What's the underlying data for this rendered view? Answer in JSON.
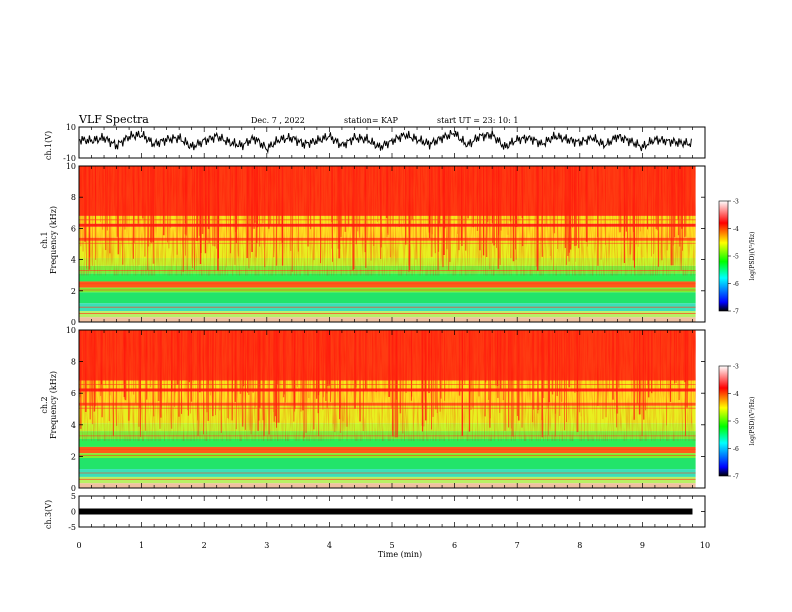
{
  "header": {
    "title": "VLF Spectra",
    "date": "Dec. 7 , 2022",
    "station": "station= KAP",
    "start": "start UT =  23: 10: 1"
  },
  "chart_data": [
    {
      "type": "line",
      "panel": "ch1_waveform",
      "ylabel": "ch.1(V)",
      "ylim": [
        -10,
        10
      ],
      "yticks": [
        "10",
        "-10"
      ],
      "xlim": [
        0,
        10
      ],
      "series": [
        {
          "x": [
            0.0,
            0.2,
            0.4,
            0.6,
            0.8,
            1.0,
            1.2,
            1.4,
            1.6,
            1.8,
            2.0,
            2.2,
            2.4,
            2.6,
            2.8,
            3.0,
            3.2,
            3.4,
            3.6,
            3.8,
            4.0,
            4.2,
            4.4,
            4.6,
            4.8,
            5.0,
            5.2,
            5.4,
            5.6,
            5.8,
            6.0,
            6.2,
            6.4,
            6.6,
            6.8,
            7.0,
            7.2,
            7.4,
            7.6,
            7.8,
            8.0,
            8.2,
            8.4,
            8.6,
            8.8,
            9.0,
            9.2,
            9.4,
            9.6,
            9.8
          ],
          "values": [
            2,
            1,
            3,
            -2,
            4,
            5,
            -1,
            2,
            3,
            -3,
            1,
            4,
            0,
            -2,
            3,
            -4,
            2,
            3,
            -1,
            1,
            4,
            -2,
            3,
            2,
            -3,
            1,
            5,
            2,
            -1,
            3,
            6,
            -2,
            4,
            5,
            -3,
            2,
            3,
            -1,
            4,
            2,
            0,
            3,
            -2,
            4,
            1,
            -3,
            2,
            1,
            0,
            -1
          ]
        }
      ]
    },
    {
      "type": "heatmap",
      "panel": "ch1_spectrogram",
      "ylabel": "ch.1\nFrequency (kHz)",
      "ylim": [
        0,
        10
      ],
      "yticks": [
        "0",
        "2",
        "4",
        "6",
        "8",
        "10"
      ],
      "xlim": [
        0,
        10
      ],
      "colorbar": {
        "label": "log(PSD)(V²/Hz)",
        "range": [
          -7,
          -3
        ],
        "ticks": [
          "-3",
          "-4",
          "-5",
          "-6",
          "-7"
        ]
      }
    },
    {
      "type": "heatmap",
      "panel": "ch2_spectrogram",
      "ylabel": "ch.2\nFrequency (kHz)",
      "ylim": [
        0,
        10
      ],
      "yticks": [
        "0",
        "2",
        "4",
        "6",
        "8",
        "10"
      ],
      "xlim": [
        0,
        10
      ],
      "colorbar": {
        "label": "log(PSD)(V²/Hz)",
        "range": [
          -7,
          -3
        ],
        "ticks": [
          "-3",
          "-4",
          "-5",
          "-6",
          "-7"
        ]
      }
    },
    {
      "type": "line",
      "panel": "ch3_waveform",
      "ylabel": "ch.3(V)",
      "ylim": [
        -5,
        5
      ],
      "yticks": [
        "5",
        "0",
        "-5"
      ],
      "xlim": [
        0,
        10
      ],
      "series": [
        {
          "x": [
            0,
            9.8
          ],
          "values": [
            0,
            0
          ]
        }
      ]
    }
  ],
  "xaxis": {
    "label": "Time (min)",
    "ticks": [
      "0",
      "1",
      "2",
      "3",
      "4",
      "5",
      "6",
      "7",
      "8",
      "9",
      "10"
    ]
  }
}
